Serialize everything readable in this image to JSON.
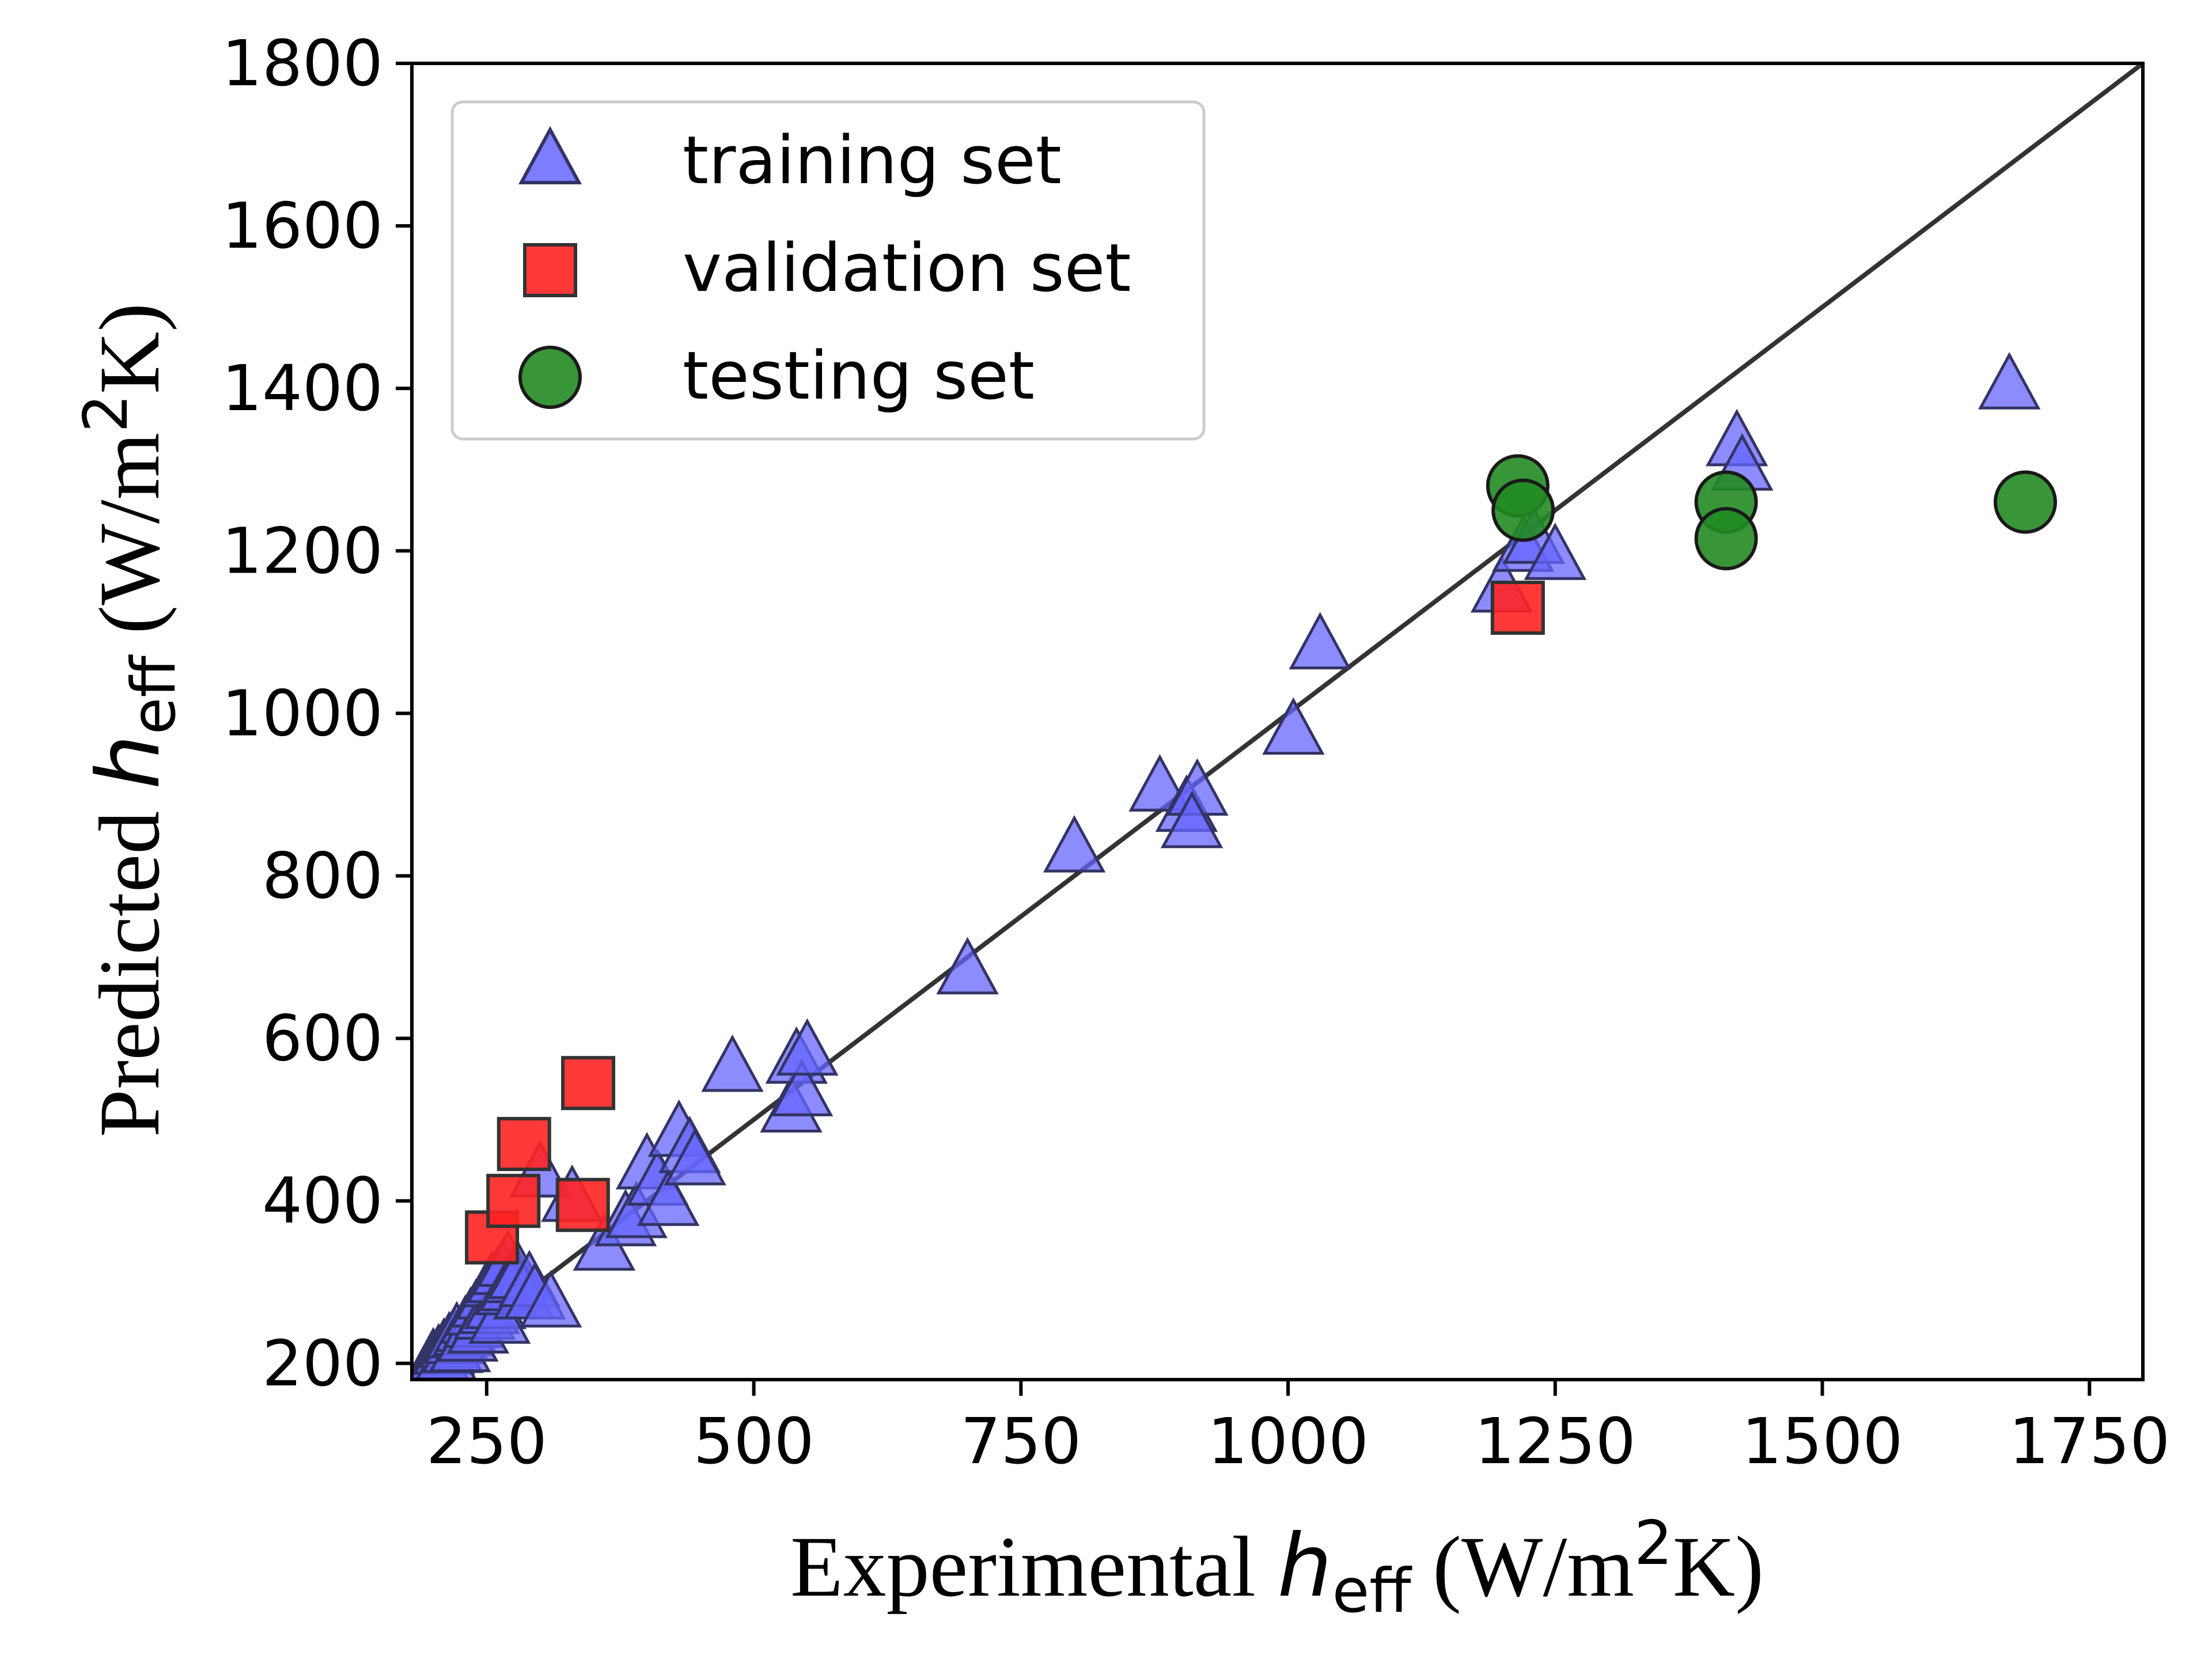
{
  "chart_data": {
    "type": "scatter",
    "xlabel": {
      "prefix": "Experimental ",
      "symbol": "h",
      "subscript": "eff",
      "unit_open": " (W/m",
      "unit_sup": "2",
      "unit_close": "K)"
    },
    "ylabel": {
      "prefix": "Predicted ",
      "symbol": "h",
      "subscript": "eff",
      "unit_open": " (W/m",
      "unit_sup": "2",
      "unit_close": "K)"
    },
    "xlim": [
      180,
      1800
    ],
    "ylim": [
      180,
      1800
    ],
    "xticks": [
      250,
      500,
      750,
      1000,
      1250,
      1500,
      1750
    ],
    "yticks": [
      200,
      400,
      600,
      800,
      1000,
      1200,
      1400,
      1600,
      1800
    ],
    "xtick_labels": [
      "250",
      "500",
      "750",
      "1000",
      "1250",
      "1500",
      "1750"
    ],
    "ytick_labels": [
      "200",
      "400",
      "600",
      "800",
      "1000",
      "1200",
      "1400",
      "1600",
      "1800"
    ],
    "reference_line": {
      "type": "y=x",
      "from": [
        180,
        180
      ],
      "to": [
        1800,
        1800
      ],
      "color": "#333333"
    },
    "legend_position": "upper-left",
    "series": [
      {
        "name": "training set",
        "marker": "triangle",
        "color": "#6666ff",
        "points": [
          [
            200,
            200
          ],
          [
            205,
            205
          ],
          [
            210,
            212
          ],
          [
            212,
            205
          ],
          [
            215,
            220
          ],
          [
            218,
            214
          ],
          [
            220,
            225
          ],
          [
            222,
            232
          ],
          [
            225,
            215
          ],
          [
            228,
            235
          ],
          [
            230,
            240
          ],
          [
            232,
            228
          ],
          [
            235,
            250
          ],
          [
            238,
            245
          ],
          [
            240,
            260
          ],
          [
            242,
            238
          ],
          [
            245,
            270
          ],
          [
            248,
            255
          ],
          [
            250,
            280
          ],
          [
            252,
            262
          ],
          [
            255,
            295
          ],
          [
            258,
            268
          ],
          [
            260,
            300
          ],
          [
            262,
            250
          ],
          [
            265,
            310
          ],
          [
            268,
            285
          ],
          [
            270,
            320
          ],
          [
            272,
            290
          ],
          [
            275,
            300
          ],
          [
            280,
            305
          ],
          [
            285,
            280
          ],
          [
            290,
            295
          ],
          [
            295,
            280
          ],
          [
            300,
            430
          ],
          [
            310,
            270
          ],
          [
            330,
            400
          ],
          [
            360,
            340
          ],
          [
            380,
            370
          ],
          [
            390,
            380
          ],
          [
            400,
            440
          ],
          [
            410,
            420
          ],
          [
            420,
            395
          ],
          [
            430,
            480
          ],
          [
            440,
            460
          ],
          [
            445,
            445
          ],
          [
            480,
            560
          ],
          [
            535,
            510
          ],
          [
            540,
            570
          ],
          [
            545,
            530
          ],
          [
            550,
            580
          ],
          [
            700,
            680
          ],
          [
            800,
            830
          ],
          [
            880,
            905
          ],
          [
            905,
            880
          ],
          [
            915,
            900
          ],
          [
            910,
            860
          ],
          [
            1005,
            975
          ],
          [
            1030,
            1080
          ],
          [
            1200,
            1150
          ],
          [
            1220,
            1200
          ],
          [
            1230,
            1210
          ],
          [
            1250,
            1190
          ],
          [
            1420,
            1330
          ],
          [
            1425,
            1300
          ],
          [
            1675,
            1400
          ]
        ]
      },
      {
        "name": "validation set",
        "marker": "square",
        "color": "#ff2222",
        "points": [
          [
            255,
            355
          ],
          [
            275,
            400
          ],
          [
            285,
            470
          ],
          [
            345,
            545
          ],
          [
            340,
            395
          ],
          [
            1215,
            1130
          ]
        ]
      },
      {
        "name": "testing set",
        "marker": "circle",
        "color": "#228b22",
        "points": [
          [
            1215,
            1280
          ],
          [
            1220,
            1250
          ],
          [
            1410,
            1260
          ],
          [
            1410,
            1215
          ],
          [
            1690,
            1260
          ]
        ]
      }
    ]
  }
}
